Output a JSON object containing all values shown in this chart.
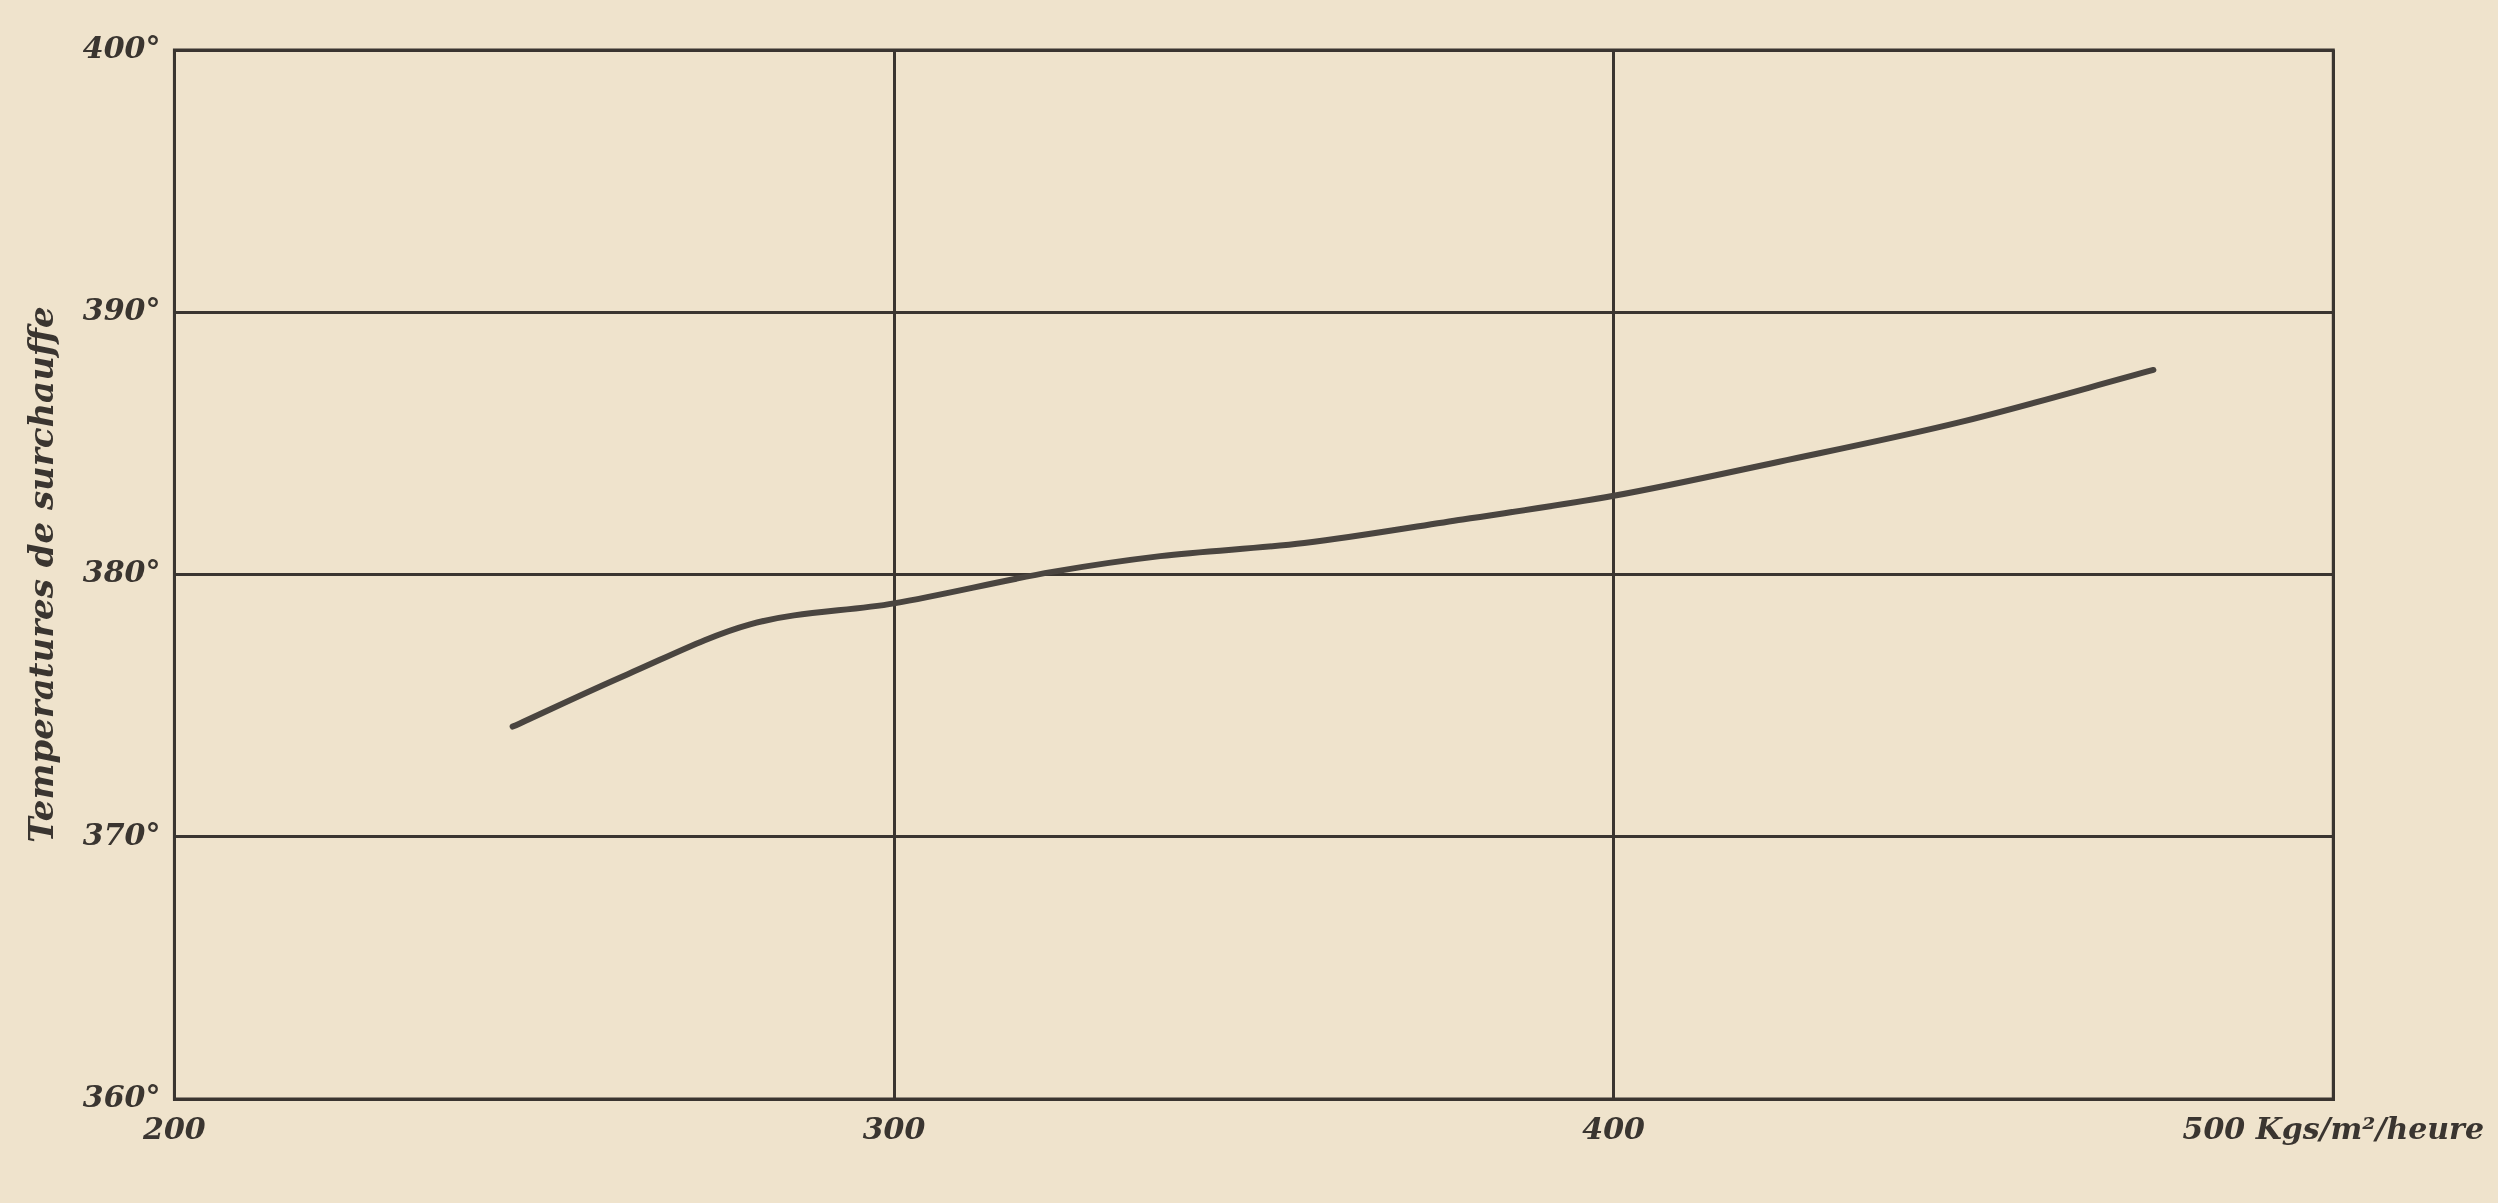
{
  "chart_data": {
    "type": "line",
    "ylabel": "Temperatures de surchauffe",
    "x": [
      247,
      263,
      280,
      300,
      322,
      337,
      357,
      379,
      400,
      423,
      448,
      475
    ],
    "series": [
      {
        "color": "#4a4540",
        "values": [
          374.2,
          376.2,
          378.1,
          378.9,
          380.1,
          380.7,
          381.2,
          382.1,
          383.0,
          384.3,
          385.8,
          387.8
        ]
      }
    ],
    "xlim": [
      200,
      500
    ],
    "xticks": [
      200,
      300,
      400,
      {
        "value": 500,
        "label": "500 Kgs/m²/heure"
      }
    ],
    "ylim": [
      360,
      400
    ],
    "yticks": [
      {
        "value": 360,
        "label": "360°"
      },
      {
        "value": 370,
        "label": "370°"
      },
      {
        "value": 380,
        "label": "380°"
      },
      {
        "value": 390,
        "label": "390°"
      },
      {
        "value": 400,
        "label": "400°"
      }
    ],
    "grid": true,
    "legend": false,
    "marker": "none",
    "line_style": "solid"
  }
}
